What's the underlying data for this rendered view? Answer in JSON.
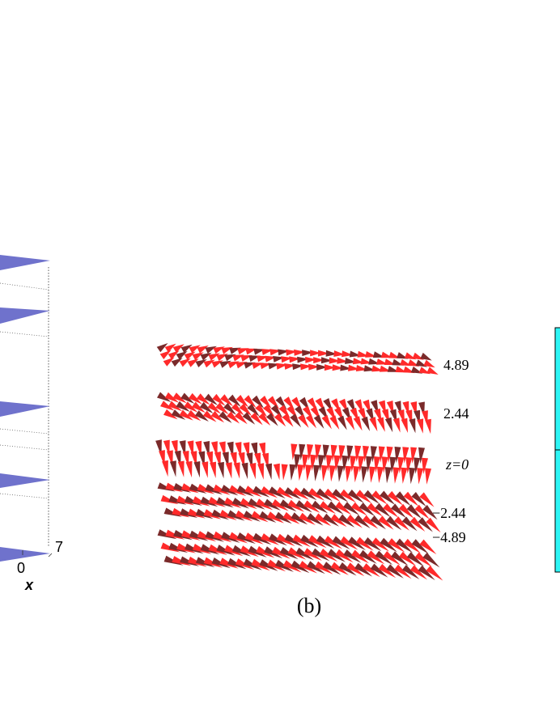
{
  "left_panel": {
    "x_tick_labels": [
      "0",
      "7"
    ],
    "x_axis_label": "x",
    "plane_color": "#6f72cc",
    "plane_count": 5
  },
  "middle_panel": {
    "layer_labels": [
      "4.89",
      "2.44",
      "z=0",
      "−2.44",
      "−4.89"
    ],
    "caption": "(b)",
    "cone_colors": {
      "light": "#ff2a2a",
      "dark": "#7a2a2a"
    }
  },
  "right_panel": {
    "colorbar_color": "#2ef5f5"
  }
}
